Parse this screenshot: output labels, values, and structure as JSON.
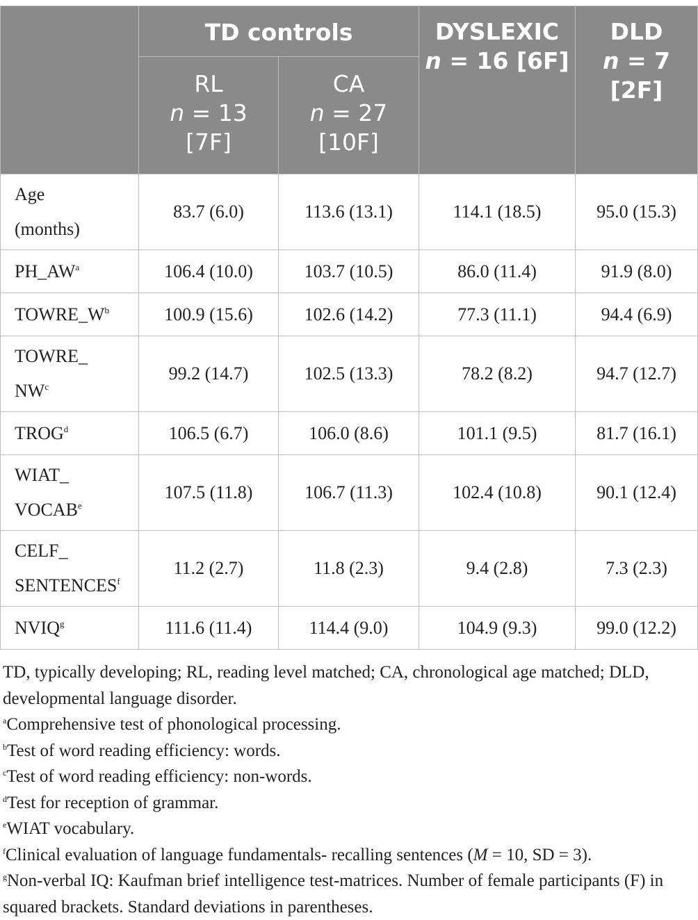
{
  "header": {
    "td_controls": "TD controls",
    "dyslexic": {
      "title": "DYSLEXIC",
      "n_prefix": "n",
      "n_value": " = 16 [6F]"
    },
    "dld": {
      "title": "DLD",
      "n_prefix": "n",
      "n_value": " = 7",
      "f": "[2F]"
    },
    "rl": {
      "title": "RL",
      "n_prefix": "n",
      "n_value": " = 13",
      "f": "[7F]"
    },
    "ca": {
      "title": "CA",
      "n_prefix": "n",
      "n_value": " = 27",
      "f": "[10F]"
    }
  },
  "rows": [
    {
      "label_lines": [
        "Age",
        "(months)"
      ],
      "sup": "",
      "values": [
        "83.7 (6.0)",
        "113.6 (13.1)",
        "114.1 (18.5)",
        "95.0 (15.3)"
      ]
    },
    {
      "label_lines": [
        "PH_AW"
      ],
      "sup": "a",
      "values": [
        "106.4 (10.0)",
        "103.7 (10.5)",
        "86.0 (11.4)",
        "91.9 (8.0)"
      ]
    },
    {
      "label_lines": [
        "TOWRE_W"
      ],
      "sup": "b",
      "values": [
        "100.9 (15.6)",
        "102.6 (14.2)",
        "77.3 (11.1)",
        "94.4 (6.9)"
      ]
    },
    {
      "label_lines": [
        "TOWRE_",
        "NW"
      ],
      "sup": "c",
      "values": [
        "99.2 (14.7)",
        "102.5 (13.3)",
        "78.2 (8.2)",
        "94.7 (12.7)"
      ]
    },
    {
      "label_lines": [
        "TROG"
      ],
      "sup": "d",
      "values": [
        "106.5 (6.7)",
        "106.0 (8.6)",
        "101.1 (9.5)",
        "81.7 (16.1)"
      ]
    },
    {
      "label_lines": [
        "WIAT_",
        "VOCAB"
      ],
      "sup": "e",
      "values": [
        "107.5 (11.8)",
        "106.7 (11.3)",
        "102.4 (10.8)",
        "90.1 (12.4)"
      ]
    },
    {
      "label_lines": [
        "CELF_",
        "SENTENCES"
      ],
      "sup": "f",
      "values": [
        "11.2 (2.7)",
        "11.8 (2.3)",
        "9.4 (2.8)",
        "7.3 (2.3)"
      ]
    },
    {
      "label_lines": [
        "NVIQ"
      ],
      "sup": "g",
      "values": [
        "111.6 (11.4)",
        "114.4 (9.0)",
        "104.9 (9.3)",
        "99.0 (12.2)"
      ]
    }
  ],
  "notes": {
    "abbrev": "TD, typically developing; RL, reading level matched; CA, chronological age matched; DLD, developmental language disorder.",
    "a": "Comprehensive test of phonological processing.",
    "b": "Test of word reading efficiency: words.",
    "c": "Test of word reading efficiency: non-words.",
    "d": "Test for reception of grammar.",
    "e": "WIAT vocabulary.",
    "f_pre": "Clinical evaluation of language fundamentals- recalling sentences (",
    "f_m": "M",
    "f_post": " = 10, SD = 3).",
    "g": "Non-verbal IQ: Kaufman brief intelligence test-matrices. Number of female participants (F) in squared brackets. Standard deviations in parentheses."
  }
}
